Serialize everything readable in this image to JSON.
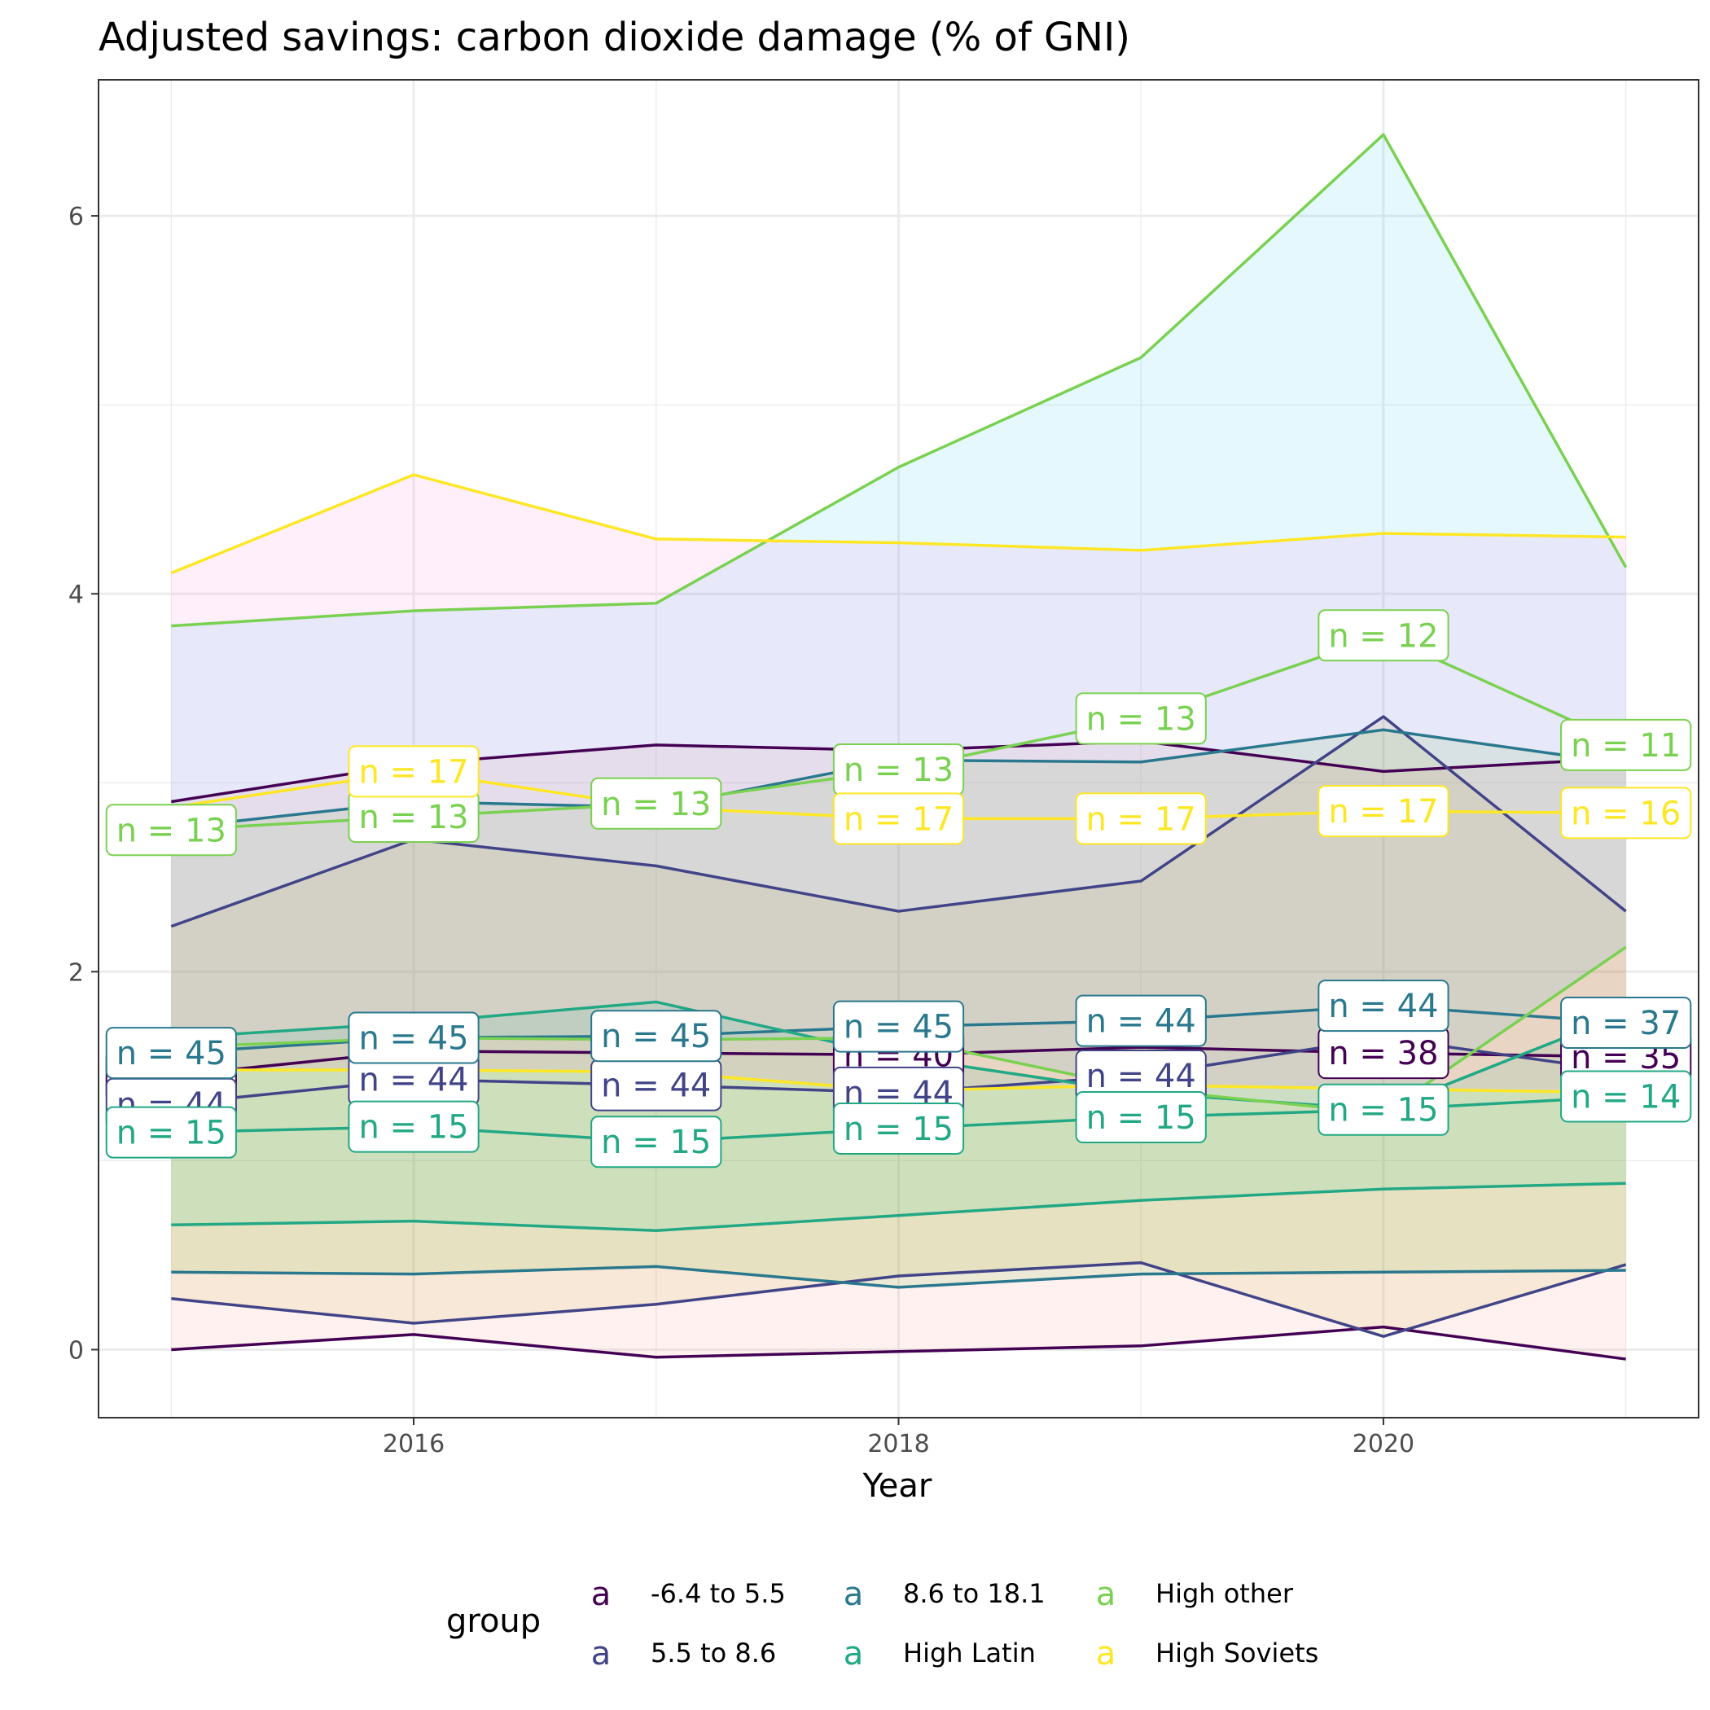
{
  "chart_data": {
    "type": "line",
    "title": "Adjusted savings: carbon dioxide damage (% of GNI)",
    "xlabel": "Year",
    "ylabel": "",
    "xlim": [
      2014.7,
      2021.3
    ],
    "ylim": [
      -0.36,
      6.72
    ],
    "x_ticks": [
      2016,
      2018,
      2020
    ],
    "y_ticks": [
      0,
      2,
      4,
      6
    ],
    "grid": true,
    "legend": {
      "title": "group",
      "position": "bottom",
      "key_glyph": "a",
      "entries": [
        {
          "label": "-6.4 to 5.5",
          "color": "#440154"
        },
        {
          "label": "5.5 to 8.6",
          "color": "#414487"
        },
        {
          "label": "8.6 to 18.1",
          "color": "#2A788E"
        },
        {
          "label": "High Latin",
          "color": "#22A884"
        },
        {
          "label": "High other",
          "color": "#7AD151"
        },
        {
          "label": "High Soviets",
          "color": "#FDE725"
        }
      ]
    },
    "x": [
      2015,
      2016,
      2017,
      2018,
      2019,
      2020,
      2021
    ],
    "series": [
      {
        "name": "-6.4 to 5.5",
        "color": "#440154",
        "fill": "#F8766D",
        "lower": [
          0.0,
          0.08,
          -0.04,
          -0.01,
          0.02,
          0.12,
          -0.05
        ],
        "median": [
          1.45,
          1.58,
          1.57,
          1.56,
          1.6,
          1.57,
          1.55
        ],
        "upper": [
          2.9,
          3.1,
          3.2,
          3.17,
          3.22,
          3.06,
          3.13
        ],
        "n": [
          "44",
          "",
          "",
          "40",
          "",
          "38",
          "35"
        ]
      },
      {
        "name": "5.5 to 8.6",
        "color": "#414487",
        "fill": "#C49A00",
        "lower": [
          0.27,
          0.14,
          0.24,
          0.39,
          0.46,
          0.07,
          0.45
        ],
        "median": [
          1.3,
          1.43,
          1.4,
          1.36,
          1.45,
          1.65,
          1.47
        ],
        "upper": [
          2.24,
          2.7,
          2.56,
          2.32,
          2.48,
          3.35,
          2.32
        ],
        "n": [
          "44",
          "44",
          "44",
          "44",
          "44",
          "",
          ""
        ]
      },
      {
        "name": "8.6 to 18.1",
        "color": "#2A788E",
        "fill": "#53B400",
        "lower": [
          0.41,
          0.4,
          0.44,
          0.33,
          0.4,
          0.41,
          0.42
        ],
        "median": [
          1.57,
          1.65,
          1.66,
          1.71,
          1.74,
          1.82,
          1.73
        ],
        "upper": [
          2.76,
          2.9,
          2.87,
          3.12,
          3.11,
          3.28,
          3.1
        ],
        "n": [
          "45",
          "45",
          "45",
          "45",
          "44",
          "44",
          "37"
        ]
      },
      {
        "name": "High Latin",
        "color": "#22A884",
        "fill": "#00C094",
        "lower": [
          0.66,
          0.68,
          0.63,
          0.71,
          0.79,
          0.85,
          0.88
        ],
        "median": [
          1.15,
          1.18,
          1.1,
          1.17,
          1.23,
          1.27,
          1.34
        ],
        "upper": [
          1.65,
          1.73,
          1.84,
          1.55,
          1.36,
          1.27,
          1.78
        ],
        "n": [
          "15",
          "15",
          "15",
          "15",
          "15",
          "15",
          "14"
        ]
      },
      {
        "name": "High other",
        "color": "#7AD151",
        "fill": "#00B6EB",
        "lower": [
          1.6,
          1.65,
          1.64,
          1.65,
          1.38,
          1.25,
          2.13
        ],
        "median": [
          2.75,
          2.82,
          2.89,
          3.07,
          3.34,
          3.78,
          3.2
        ],
        "upper": [
          3.83,
          3.91,
          3.95,
          4.67,
          5.25,
          6.43,
          4.14
        ],
        "n": [
          "13",
          "13",
          "13",
          "13",
          "13",
          "12",
          "11"
        ]
      },
      {
        "name": "High Soviets",
        "color": "#FDE725",
        "fill": "#FB61D7",
        "lower": [
          1.48,
          1.48,
          1.47,
          1.37,
          1.4,
          1.38,
          1.36
        ],
        "median": [
          2.87,
          3.06,
          2.87,
          2.81,
          2.81,
          2.85,
          2.84
        ],
        "upper": [
          4.11,
          4.63,
          4.29,
          4.27,
          4.23,
          4.32,
          4.3
        ],
        "n": [
          "",
          "17",
          "",
          "17",
          "17",
          "17",
          "16"
        ]
      }
    ]
  }
}
